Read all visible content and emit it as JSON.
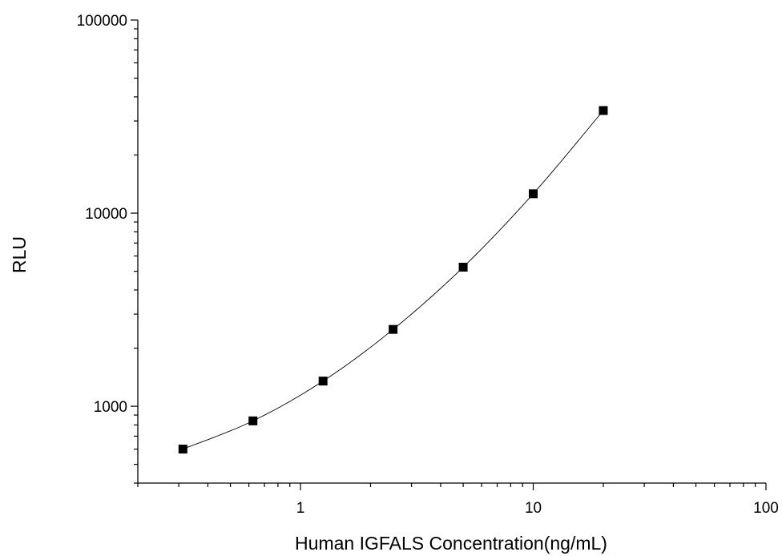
{
  "chart_data": {
    "type": "scatter",
    "title": "",
    "xlabel": "Human IGFALS Concentration(ng/mL)",
    "ylabel": "RLU",
    "x_scale": "log",
    "y_scale": "log",
    "xlim": [
      0.2,
      100
    ],
    "ylim": [
      400,
      100000
    ],
    "x_ticks": [
      1,
      10,
      100
    ],
    "x_tick_labels": [
      "1",
      "10",
      "100"
    ],
    "y_ticks": [
      1000,
      10000,
      100000
    ],
    "y_tick_labels": [
      "1000",
      "10000",
      "100000"
    ],
    "grid": false,
    "legend": "none",
    "fit_curve": true,
    "marker": "square",
    "color": "#000000",
    "series": [
      {
        "x": [
          0.3125,
          0.625,
          1.25,
          2.5,
          5,
          10,
          20
        ],
        "y": [
          600,
          840,
          1350,
          2500,
          5250,
          12600,
          34000
        ]
      }
    ]
  }
}
